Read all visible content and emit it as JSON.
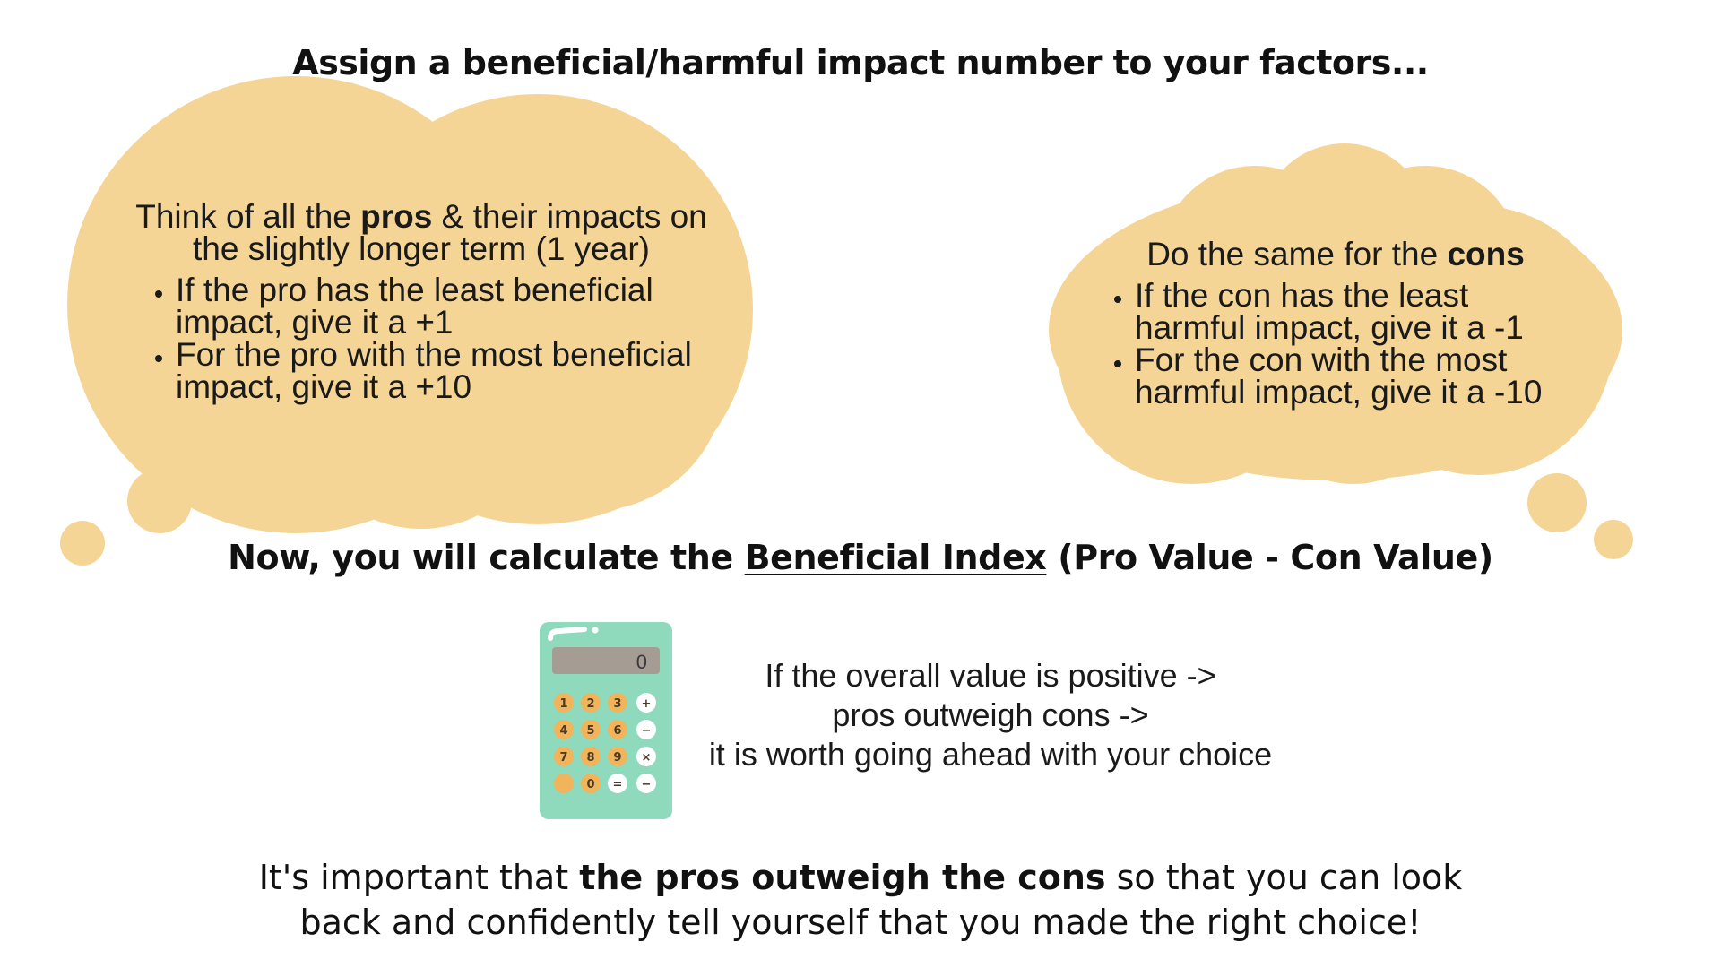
{
  "heading": "Assign a beneficial/harmful impact number to your factors...",
  "pros_cloud": {
    "lead_before": "Think of all the ",
    "lead_bold": "pros",
    "lead_after": " & their impacts on the slightly longer term (1 year)",
    "bullets": [
      "If the pro has the least beneficial impact, give it a +1",
      "For the pro with the most beneficial impact, give it a +10"
    ]
  },
  "cons_cloud": {
    "lead_before": "Do the same for the ",
    "lead_bold": "cons",
    "bullets": [
      "If the con has the least harmful impact, give it a -1",
      "For the con with the most harmful impact, give it a -10"
    ]
  },
  "index_line": {
    "before": "Now, you will calculate the ",
    "term": "Beneficial Index",
    "after": " (Pro Value - Con Value)"
  },
  "calculator": {
    "display_value": "0",
    "keys": [
      "1",
      "2",
      "3",
      "+",
      "4",
      "5",
      "6",
      "−",
      "7",
      "8",
      "9",
      "×",
      "",
      "0",
      "=",
      "−"
    ]
  },
  "result_lines": [
    "If the overall value is positive ->",
    "pros outweigh cons ->",
    "it is worth going ahead with your choice"
  ],
  "closing": {
    "before": "It's important that ",
    "bold": "the pros outweigh the cons",
    "after": " so that you can look back and confidently tell yourself that you made the right choice!"
  },
  "colors": {
    "cloud": "#f5d596",
    "calculator_body": "#8fd9bd",
    "calculator_key": "#f2b45a",
    "calculator_screen": "#a59d94"
  }
}
